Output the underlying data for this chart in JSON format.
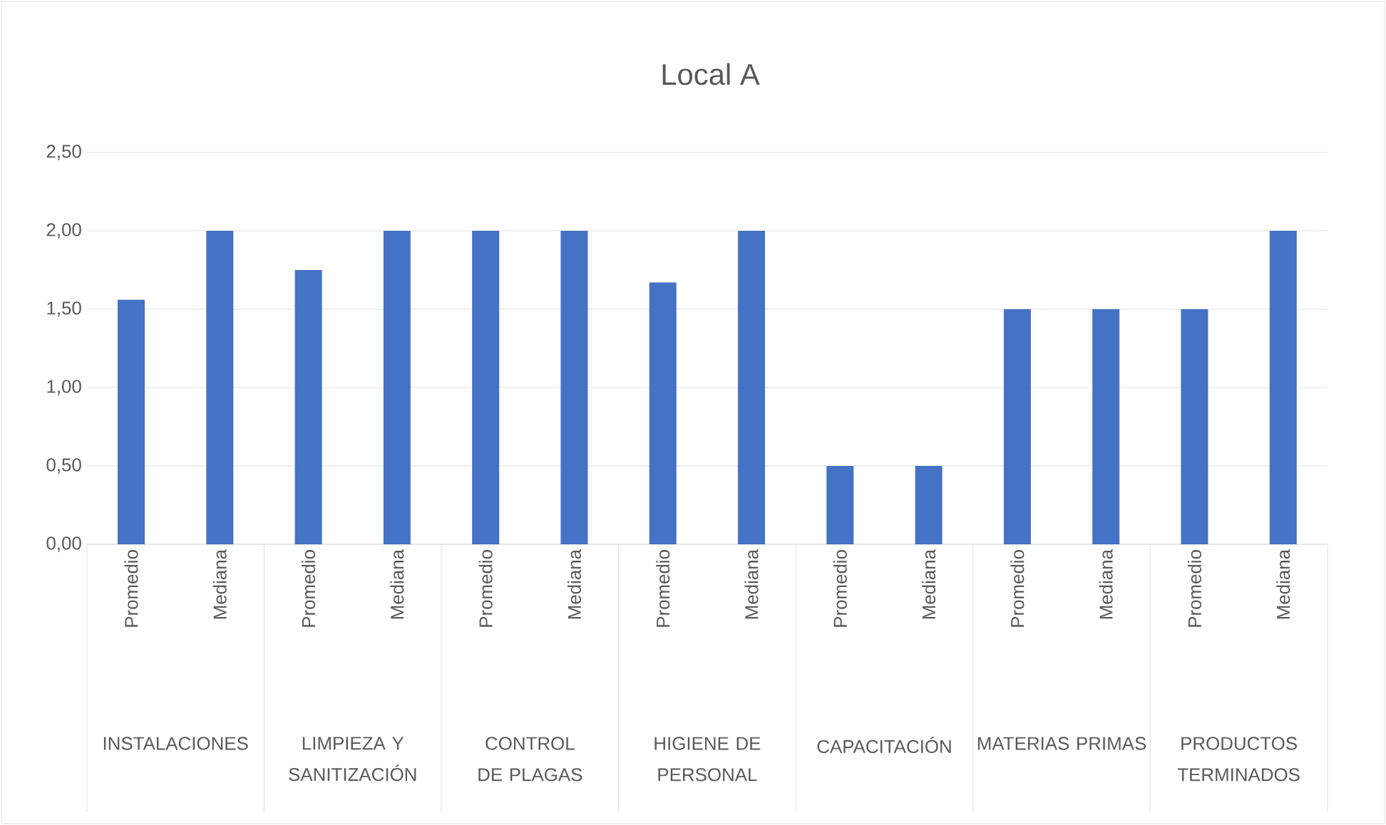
{
  "chart_data": {
    "type": "bar",
    "title": "Local A",
    "categories": [
      "Promedio",
      "Mediana",
      "Promedio",
      "Mediana",
      "Promedio",
      "Mediana",
      "Promedio",
      "Mediana",
      "Promedio",
      "Mediana",
      "Promedio",
      "Mediana",
      "Promedio",
      "Mediana"
    ],
    "values": [
      1.56,
      2,
      1.75,
      2,
      2,
      2,
      1.67,
      2,
      0.5,
      0.5,
      1.5,
      1.5,
      1.5,
      2
    ],
    "color": "#4472c4",
    "ylim": [
      0,
      2.5
    ],
    "yticks": [
      {
        "value": 0,
        "label": "0,00"
      },
      {
        "value": 0.5,
        "label": "0,50"
      },
      {
        "value": 1,
        "label": "1,00"
      },
      {
        "value": 1.5,
        "label": "1,50"
      },
      {
        "value": 2,
        "label": "2,00"
      },
      {
        "value": 2.5,
        "label": "2,50"
      }
    ],
    "grid": "y",
    "annotations": [
      "INSTALACIONES",
      "LIMPIEZA Y SANITIZACIÓN",
      "CONTROL DE PLAGAS",
      "HIGIENE DE PERSONAL",
      "CAPACITACIÓN",
      "MATERIAS PRIMAS",
      "PRODUCTOS TERMINADOS"
    ]
  }
}
